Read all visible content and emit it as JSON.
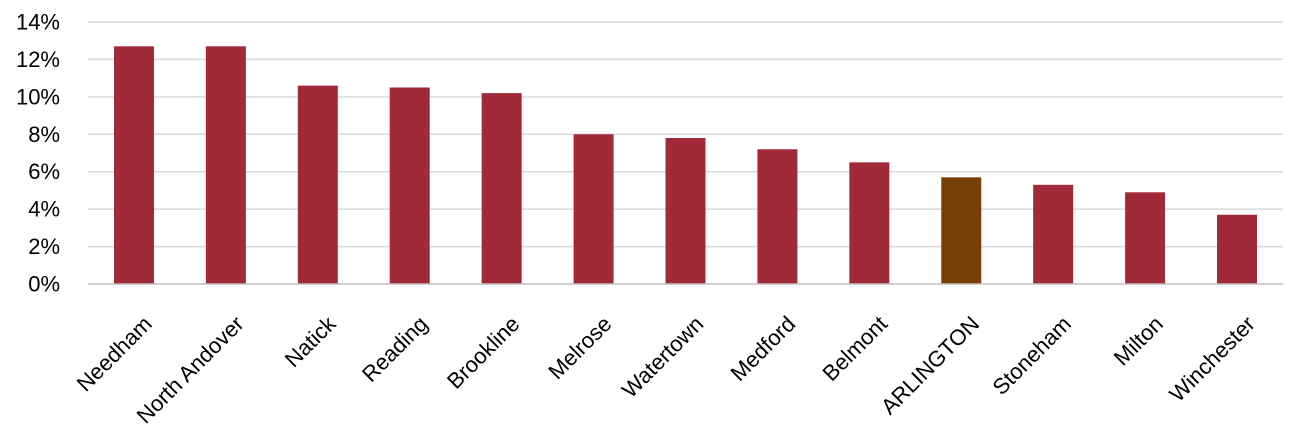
{
  "chart_data": {
    "type": "bar",
    "title": "",
    "xlabel": "",
    "ylabel": "",
    "categories": [
      "Needham",
      "North Andover",
      "Natick",
      "Reading",
      "Brookline",
      "Melrose",
      "Watertown",
      "Medford",
      "Belmont",
      "ARLINGTON",
      "Stoneham",
      "Milton",
      "Winchester"
    ],
    "values": [
      12.7,
      12.7,
      10.6,
      10.5,
      10.2,
      8.0,
      7.8,
      7.2,
      6.5,
      5.7,
      5.3,
      4.9,
      3.7
    ],
    "highlight_category": "ARLINGTON",
    "ylim": [
      0,
      14
    ],
    "yticks": [
      "0%",
      "2%",
      "4%",
      "6%",
      "8%",
      "10%",
      "12%",
      "14%"
    ],
    "ytick_values": [
      0,
      2,
      4,
      6,
      8,
      10,
      12,
      14
    ],
    "grid": true,
    "legend": "none",
    "colors": {
      "bar": "#A0293A",
      "highlight": "#763F06",
      "grid": "#D9D9D9",
      "axis": "#BFBFBF"
    }
  }
}
